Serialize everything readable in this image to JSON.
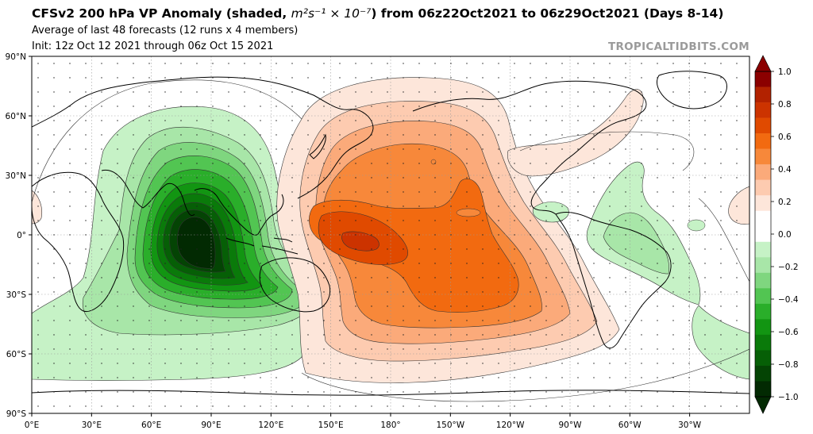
{
  "header": {
    "title_pre": "CFSv2 200 hPa VP Anomaly (shaded,",
    "title_units": "m²s⁻¹ × 10⁻⁷",
    "title_post": ") from 06z22Oct2021 to 06z29Oct2021 (Days 8-14)",
    "subtitle": "Average of last 48 forecasts (12 runs x 4 members)",
    "init": "Init: 12z Oct 12 2021 through 06z Oct 15 2021",
    "brand": "TROPICALTIDBITS.COM"
  },
  "map": {
    "lat_labels": [
      "90°N",
      "60°N",
      "30°N",
      "0°",
      "30°S",
      "60°S",
      "90°S"
    ],
    "lon_labels": [
      "0°E",
      "30°E",
      "60°E",
      "90°E",
      "120°E",
      "150°E",
      "180°",
      "150°W",
      "120°W",
      "90°W",
      "60°W",
      "30°W"
    ]
  },
  "colorbar": {
    "ticks": [
      "1.0",
      "0.8",
      "0.6",
      "0.4",
      "0.2",
      "0.0",
      "−0.2",
      "−0.4",
      "−0.6",
      "−0.8",
      "−1.0"
    ],
    "colors": [
      "#8b0000",
      "#b22200",
      "#cc3300",
      "#e04a00",
      "#f26a10",
      "#f7883a",
      "#fbaa7a",
      "#fdcbb0",
      "#fde6da",
      "#ffffff",
      "#ffffff",
      "#c6f2c6",
      "#a8e6a8",
      "#7fd67f",
      "#52c552",
      "#2aae2a",
      "#129512",
      "#0a7a0a",
      "#065f06",
      "#044404",
      "#022a02"
    ]
  }
}
